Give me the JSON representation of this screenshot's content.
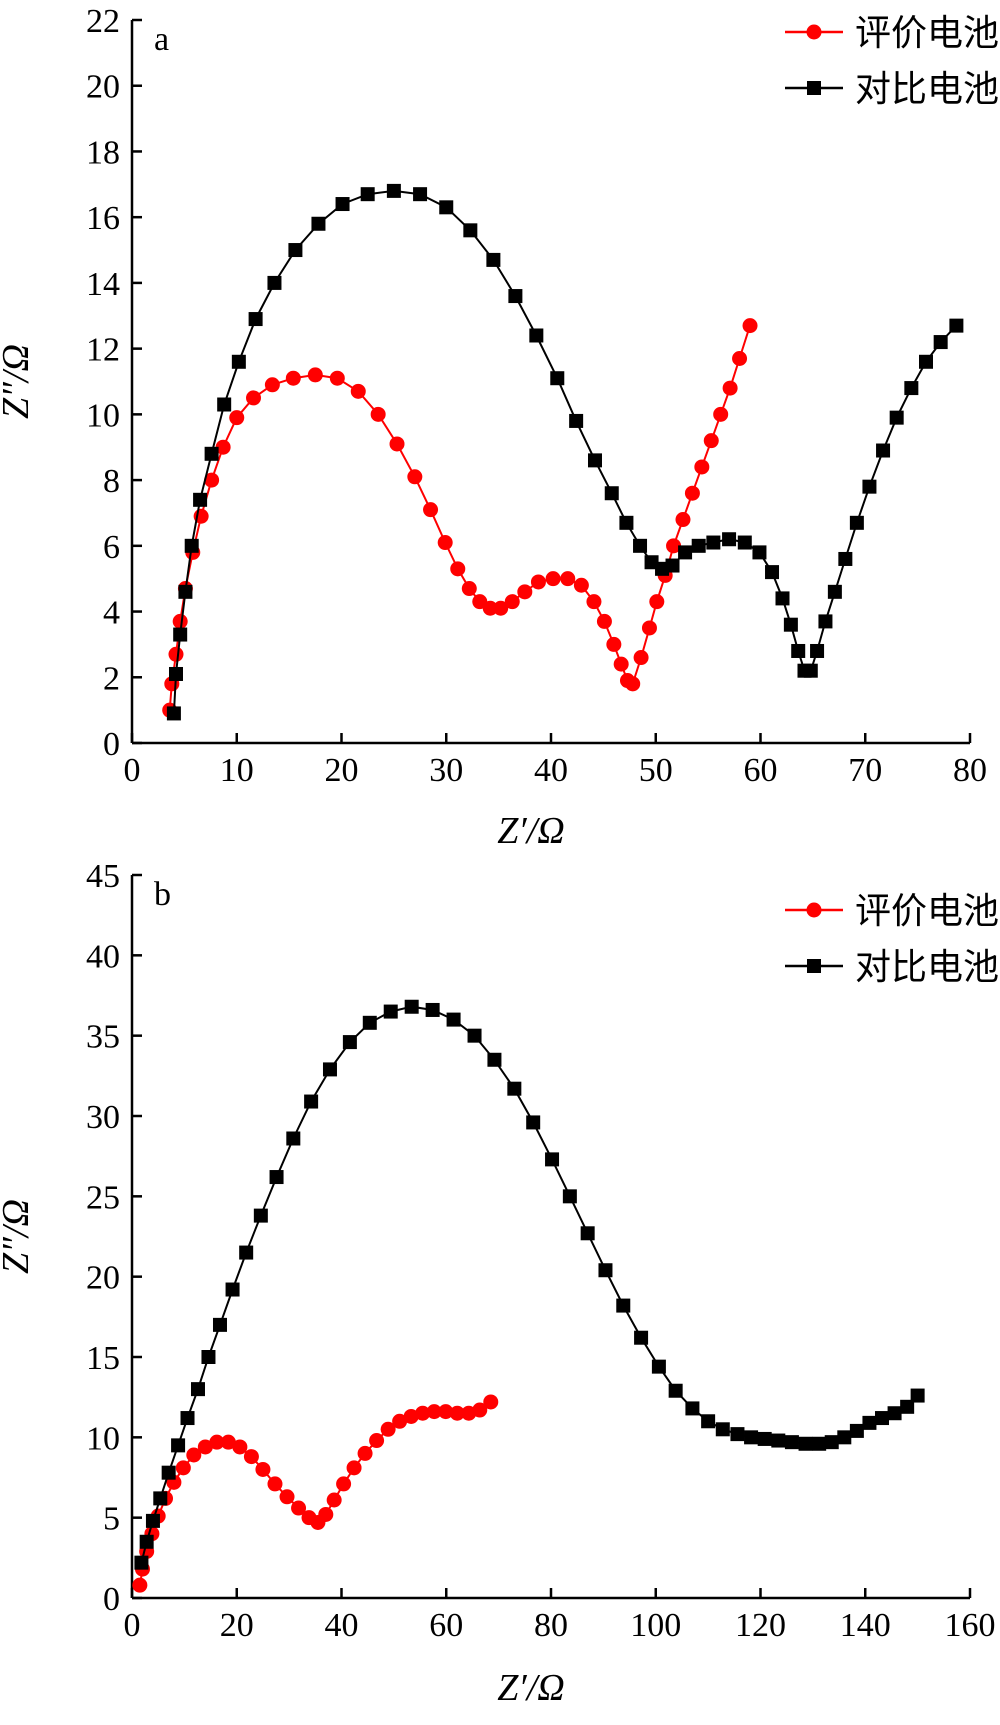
{
  "chart_data": [
    {
      "type": "line",
      "panel": "a",
      "xlabel": "Z′/Ω",
      "ylabel": "Z″/Ω",
      "xlim": [
        0,
        80
      ],
      "ylim": [
        0,
        22
      ],
      "xticks": [
        "0",
        "10",
        "20",
        "30",
        "40",
        "50",
        "60",
        "70",
        "80"
      ],
      "yticks": [
        "0",
        "2",
        "4",
        "6",
        "8",
        "10",
        "12",
        "14",
        "16",
        "18",
        "20",
        "22"
      ],
      "legend_position": "top-right",
      "series": [
        {
          "name": "评价电池",
          "color": "#ff0000",
          "marker": "circle",
          "x": [
            3.6,
            3.8,
            4.2,
            4.6,
            5.1,
            5.8,
            6.6,
            7.6,
            8.7,
            10.0,
            11.6,
            13.4,
            15.4,
            17.5,
            19.6,
            21.6,
            23.5,
            25.3,
            27.0,
            28.5,
            29.9,
            31.1,
            32.2,
            33.2,
            34.2,
            35.2,
            36.3,
            37.5,
            38.8,
            40.2,
            41.6,
            42.9,
            44.1,
            45.1,
            46.0,
            46.7,
            47.3,
            47.8,
            48.6,
            49.4,
            50.1,
            50.9,
            51.7,
            52.6,
            53.5,
            54.4,
            55.3,
            56.2,
            57.1,
            58.0,
            59.0
          ],
          "y": [
            1.0,
            1.8,
            2.7,
            3.7,
            4.7,
            5.8,
            6.9,
            8.0,
            9.0,
            9.9,
            10.5,
            10.9,
            11.1,
            11.2,
            11.1,
            10.7,
            10.0,
            9.1,
            8.1,
            7.1,
            6.1,
            5.3,
            4.7,
            4.3,
            4.1,
            4.1,
            4.3,
            4.6,
            4.9,
            5.0,
            5.0,
            4.8,
            4.3,
            3.7,
            3.0,
            2.4,
            1.9,
            1.8,
            2.6,
            3.5,
            4.3,
            5.1,
            6.0,
            6.8,
            7.6,
            8.4,
            9.2,
            10.0,
            10.8,
            11.7,
            12.7
          ]
        },
        {
          "name": "对比电池",
          "color": "#000000",
          "marker": "square",
          "x": [
            4.0,
            4.2,
            4.6,
            5.1,
            5.7,
            6.5,
            7.6,
            8.8,
            10.2,
            11.8,
            13.6,
            15.6,
            17.8,
            20.1,
            22.5,
            25.0,
            27.5,
            30.0,
            32.3,
            34.5,
            36.6,
            38.6,
            40.6,
            42.4,
            44.2,
            45.8,
            47.2,
            48.5,
            49.6,
            50.6,
            51.6,
            52.8,
            54.1,
            55.5,
            57.0,
            58.5,
            59.9,
            61.1,
            62.1,
            62.9,
            63.6,
            64.2,
            64.8,
            65.4,
            66.2,
            67.1,
            68.1,
            69.2,
            70.4,
            71.7,
            73.0,
            74.4,
            75.8,
            77.2,
            78.7
          ],
          "y": [
            0.9,
            2.1,
            3.3,
            4.6,
            6.0,
            7.4,
            8.8,
            10.3,
            11.6,
            12.9,
            14.0,
            15.0,
            15.8,
            16.4,
            16.7,
            16.8,
            16.7,
            16.3,
            15.6,
            14.7,
            13.6,
            12.4,
            11.1,
            9.8,
            8.6,
            7.6,
            6.7,
            6.0,
            5.5,
            5.3,
            5.4,
            5.8,
            6.0,
            6.1,
            6.2,
            6.1,
            5.8,
            5.2,
            4.4,
            3.6,
            2.8,
            2.2,
            2.2,
            2.8,
            3.7,
            4.6,
            5.6,
            6.7,
            7.8,
            8.9,
            9.9,
            10.8,
            11.6,
            12.2,
            12.7
          ]
        }
      ]
    },
    {
      "type": "line",
      "panel": "b",
      "xlabel": "Z′/Ω",
      "ylabel": "Z″/Ω",
      "xlim": [
        0,
        160
      ],
      "ylim": [
        0,
        45
      ],
      "xticks": [
        "0",
        "20",
        "40",
        "60",
        "80",
        "100",
        "120",
        "140",
        "160"
      ],
      "yticks": [
        "0",
        "5",
        "10",
        "15",
        "20",
        "25",
        "30",
        "35",
        "40",
        "45"
      ],
      "legend_position": "top-right",
      "series": [
        {
          "name": "评价电池",
          "color": "#ff0000",
          "marker": "circle",
          "x": [
            1.5,
            2.0,
            2.8,
            3.8,
            5.0,
            6.4,
            8.0,
            9.8,
            11.8,
            14.0,
            16.2,
            18.4,
            20.6,
            22.8,
            25.0,
            27.3,
            29.6,
            31.8,
            33.8,
            35.5,
            37.0,
            38.6,
            40.4,
            42.4,
            44.5,
            46.7,
            48.9,
            51.1,
            53.3,
            55.5,
            57.7,
            59.9,
            62.1,
            64.3,
            66.4,
            68.5
          ],
          "y": [
            0.8,
            1.8,
            2.9,
            4.0,
            5.1,
            6.2,
            7.2,
            8.1,
            8.9,
            9.4,
            9.7,
            9.7,
            9.4,
            8.8,
            8.0,
            7.1,
            6.3,
            5.6,
            5.0,
            4.7,
            5.2,
            6.1,
            7.1,
            8.1,
            9.0,
            9.8,
            10.5,
            11.0,
            11.3,
            11.5,
            11.6,
            11.6,
            11.5,
            11.5,
            11.7,
            12.2
          ]
        },
        {
          "name": "对比电池",
          "color": "#000000",
          "marker": "square",
          "x": [
            1.8,
            2.8,
            4.0,
            5.4,
            7.0,
            8.8,
            10.6,
            12.6,
            14.6,
            16.8,
            19.2,
            21.8,
            24.6,
            27.6,
            30.8,
            34.2,
            37.8,
            41.6,
            45.4,
            49.4,
            53.4,
            57.4,
            61.4,
            65.4,
            69.2,
            73.0,
            76.6,
            80.2,
            83.6,
            87.0,
            90.4,
            93.8,
            97.2,
            100.6,
            103.8,
            107.0,
            110.0,
            112.8,
            115.6,
            118.2,
            120.8,
            123.4,
            126.0,
            128.6,
            131.2,
            133.6,
            136.0,
            138.4,
            140.8,
            143.2,
            145.6,
            148.0,
            150.0
          ],
          "y": [
            2.2,
            3.5,
            4.8,
            6.2,
            7.8,
            9.5,
            11.2,
            13.0,
            15.0,
            17.0,
            19.2,
            21.5,
            23.8,
            26.2,
            28.6,
            30.9,
            32.9,
            34.6,
            35.8,
            36.5,
            36.8,
            36.6,
            36.0,
            35.0,
            33.5,
            31.7,
            29.6,
            27.3,
            25.0,
            22.7,
            20.4,
            18.2,
            16.2,
            14.4,
            12.9,
            11.8,
            11.0,
            10.5,
            10.2,
            10.0,
            9.9,
            9.8,
            9.7,
            9.6,
            9.6,
            9.7,
            10.0,
            10.4,
            10.9,
            11.2,
            11.5,
            11.9,
            12.6
          ]
        }
      ]
    }
  ]
}
